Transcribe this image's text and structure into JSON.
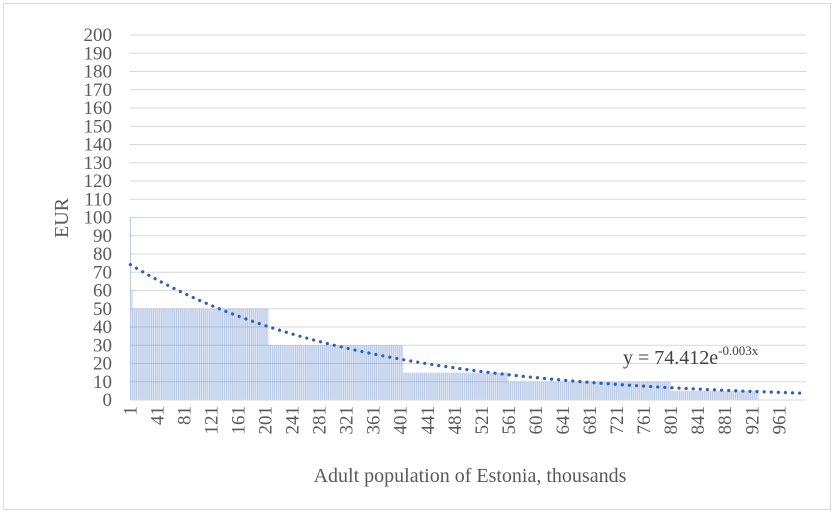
{
  "chart_data": {
    "type": "bar",
    "xlabel": "Adult population of Estonia, thousands",
    "ylabel": "EUR",
    "ylim": [
      0,
      200
    ],
    "y_ticks": [
      0,
      10,
      20,
      30,
      40,
      50,
      60,
      70,
      80,
      90,
      100,
      110,
      120,
      130,
      140,
      150,
      160,
      170,
      180,
      190,
      200
    ],
    "x_ticks": [
      1,
      41,
      81,
      121,
      161,
      201,
      241,
      281,
      321,
      361,
      401,
      441,
      481,
      521,
      561,
      601,
      641,
      681,
      721,
      761,
      801,
      841,
      881,
      921,
      961
    ],
    "x_range": [
      1,
      1000
    ],
    "grid": "horizontal",
    "legend": "none",
    "bar_color": "#4472c4",
    "trend_color": "#2e5fbd",
    "series": [
      {
        "values_by_range": [
          {
            "from": 1,
            "to": 2,
            "value": 100
          },
          {
            "from": 3,
            "to": 4,
            "value": 60
          },
          {
            "from": 5,
            "to": 205,
            "value": 50
          },
          {
            "from": 206,
            "to": 404,
            "value": 30
          },
          {
            "from": 405,
            "to": 560,
            "value": 15
          },
          {
            "from": 561,
            "to": 800,
            "value": 10
          },
          {
            "from": 801,
            "to": 930,
            "value": 5
          }
        ]
      }
    ],
    "trendline": {
      "type": "exponential",
      "a": 74.412,
      "b": -0.003,
      "label_base": "y = 74.412e",
      "label_exponent": "-0.003x"
    }
  }
}
